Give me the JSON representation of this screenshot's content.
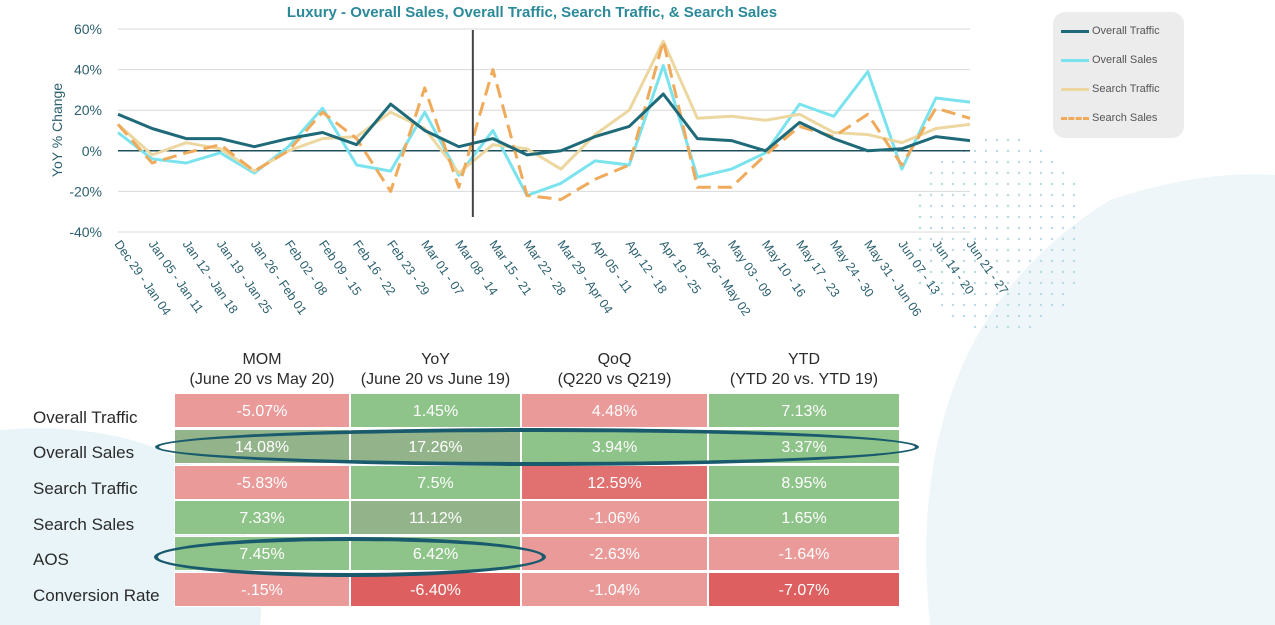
{
  "chart_data": {
    "type": "line",
    "title": "Luxury - Overall Sales, Overall Traffic, Search Traffic, & Search Sales",
    "ylabel": "YoY % Change",
    "ylim": [
      -40,
      60
    ],
    "yticks": [
      "60%",
      "40%",
      "20%",
      "0%",
      "-20%",
      "-40%"
    ],
    "ytick_values": [
      60,
      40,
      20,
      0,
      -20,
      -40
    ],
    "categories": [
      "Dec 29 - Jan 04",
      "Jan 05 - Jan 11",
      "Jan 12 - Jan 18",
      "Jan 19 - Jan 25",
      "Jan 26 - Feb 01",
      "Feb 02 - 08",
      "Feb 09 - 15",
      "Feb 16 - 22",
      "Feb 23 - 29",
      "Mar 01 - 07",
      "Mar 08 - 14",
      "Mar 15 - 21",
      "Mar 22 - 28",
      "Mar 29 - Apr 04",
      "Apr 05 - 11",
      "Apr 12 - 18",
      "Apr 19 - 25",
      "Apr 26 - May 02",
      "May 03 - 09",
      "May 10 - 16",
      "May 17 - 23",
      "May 24 - 30",
      "May 31 - Jun 06",
      "Jun 07 - 13",
      "Jun 14 - 20",
      "Jun 21 - 27"
    ],
    "marker_after_category": "Mar 08 - 14",
    "series": [
      {
        "name": "Overall Traffic",
        "color": "#1f6a78",
        "dash": false,
        "values": [
          18,
          11,
          6,
          6,
          2,
          6,
          9,
          3,
          23,
          10,
          2,
          6,
          -2,
          0,
          7,
          12,
          28,
          6,
          5,
          0,
          14,
          6,
          0,
          1,
          7,
          5
        ]
      },
      {
        "name": "Overall Sales",
        "color": "#7ae3ee",
        "dash": false,
        "values": [
          9,
          -4,
          -6,
          -1,
          -11,
          2,
          21,
          -7,
          -10,
          19,
          -12,
          10,
          -22,
          -16,
          -5,
          -7,
          42,
          -13,
          -9,
          -1,
          23,
          17,
          39,
          -9,
          26,
          24
        ]
      },
      {
        "name": "Search Traffic",
        "color": "#ecd7a0",
        "dash": false,
        "values": [
          13,
          -2,
          4,
          1,
          -10,
          0,
          6,
          7,
          19,
          11,
          -11,
          3,
          1,
          -9,
          8,
          20,
          54,
          16,
          17,
          15,
          18,
          9,
          8,
          4,
          11,
          13
        ]
      },
      {
        "name": "Search Sales",
        "color": "#efaa5c",
        "dash": true,
        "values": [
          13,
          -6,
          -1,
          3,
          -10,
          0,
          19,
          6,
          -20,
          31,
          -18,
          40,
          -22,
          -24,
          -14,
          -7,
          54,
          -18,
          -18,
          -2,
          12,
          7,
          18,
          -7,
          21,
          16
        ]
      }
    ]
  },
  "legend": {
    "items": [
      {
        "label": "Overall Traffic",
        "color": "#1f6a78",
        "dash": false
      },
      {
        "label": "Overall Sales",
        "color": "#7ae3ee",
        "dash": false
      },
      {
        "label": "Search Traffic",
        "color": "#ecd7a0",
        "dash": false
      },
      {
        "label": "Search Sales",
        "color": "#efaa5c",
        "dash": true
      }
    ]
  },
  "table": {
    "columns": [
      {
        "title": "MOM",
        "subtitle": "(June 20 vs May 20)"
      },
      {
        "title": "YoY",
        "subtitle": "(June 20 vs June 19)"
      },
      {
        "title": "QoQ",
        "subtitle": "(Q220 vs Q219)"
      },
      {
        "title": "YTD",
        "subtitle": "(YTD 20 vs. YTD 19)"
      }
    ],
    "rows": [
      {
        "label": "Overall Traffic",
        "cells": [
          "-5.07%",
          "1.45%",
          "4.48%",
          "7.13%"
        ]
      },
      {
        "label": "Overall Sales",
        "cells": [
          "14.08%",
          "17.26%",
          "3.94%",
          "3.37%"
        ]
      },
      {
        "label": "Search Traffic",
        "cells": [
          "-5.83%",
          "7.5%",
          "12.59%",
          "8.95%"
        ]
      },
      {
        "label": "Search Sales",
        "cells": [
          "7.33%",
          "11.12%",
          "-1.06%",
          "1.65%"
        ]
      },
      {
        "label": "AOS",
        "cells": [
          "7.45%",
          "6.42%",
          "-2.63%",
          "-1.64%"
        ]
      },
      {
        "label": "Conversion Rate",
        "cells": [
          "-.15%",
          "-6.40%",
          "-1.04%",
          "-7.07%"
        ]
      }
    ],
    "cell_tones": [
      [
        "neg",
        "pos",
        "neg",
        "pos"
      ],
      [
        "pos2",
        "pos2",
        "pos",
        "pos"
      ],
      [
        "neg",
        "pos",
        "neg2",
        "pos"
      ],
      [
        "pos",
        "pos2",
        "neg",
        "pos"
      ],
      [
        "pos",
        "pos",
        "neg",
        "neg"
      ],
      [
        "neg",
        "neg3",
        "neg",
        "neg3"
      ]
    ],
    "colors": {
      "pos": "#8ec489",
      "pos2": "#93b48a",
      "neg": "#e99a99",
      "neg2": "#e17171",
      "neg3": "#de5f5f"
    },
    "highlighted_rows": [
      "Overall Sales",
      "AOS"
    ]
  }
}
